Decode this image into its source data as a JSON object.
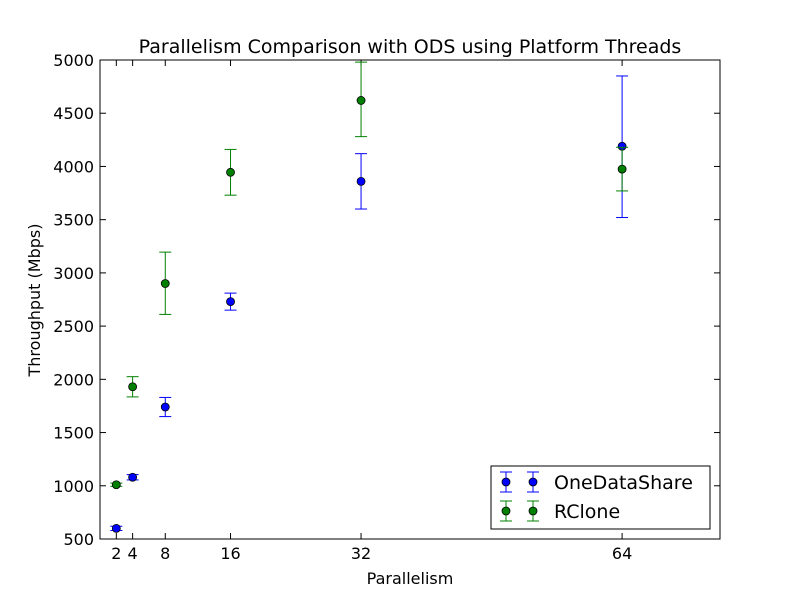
{
  "chart_data": {
    "type": "scatter",
    "title": "Parallelism Comparison with ODS using Platform Threads",
    "xlabel": "Parallelism",
    "ylabel": "Throughput (Mbps)",
    "xlim": [
      0,
      76
    ],
    "ylim": [
      500,
      5000
    ],
    "xticks": [
      2,
      4,
      8,
      16,
      32,
      64
    ],
    "yticks": [
      500,
      1000,
      1500,
      2000,
      2500,
      3000,
      3500,
      4000,
      4500,
      5000
    ],
    "grid": false,
    "legend": "bottom-right",
    "series": [
      {
        "name": "OneDataShare",
        "color": "#0000ff",
        "x": [
          2,
          4,
          8,
          16,
          32,
          64
        ],
        "y": [
          600,
          1080,
          1740,
          2730,
          3860,
          4190
        ],
        "err_low": [
          580,
          1055,
          1650,
          2650,
          3600,
          3520
        ],
        "err_high": [
          620,
          1105,
          1830,
          2810,
          4120,
          4850
        ]
      },
      {
        "name": "RClone",
        "color": "#008000",
        "x": [
          2,
          4,
          8,
          16,
          32,
          64
        ],
        "y": [
          1010,
          1930,
          2900,
          3945,
          4620,
          3975
        ],
        "err_low": [
          995,
          1835,
          2610,
          3730,
          4280,
          3770
        ],
        "err_high": [
          1025,
          2025,
          3195,
          4160,
          4980,
          4180
        ]
      }
    ]
  }
}
